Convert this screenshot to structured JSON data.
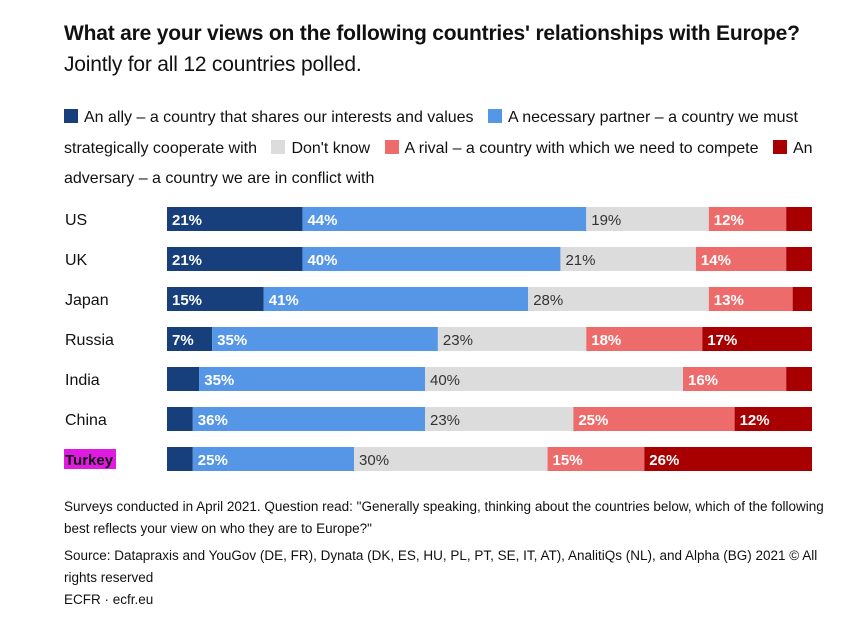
{
  "title": {
    "bold": "What are your views on the following countries' relationships with Europe?",
    "subtitle": "Jointly for all 12 countries polled."
  },
  "legend": [
    {
      "label": "An ally – a country that shares our interests and values",
      "color": "#163f7c"
    },
    {
      "label": "A necessary partner – a country we must strategically cooperate with",
      "color": "#5596e6"
    },
    {
      "label": "Don't know",
      "color": "#dcdcdc"
    },
    {
      "label": "A rival – a country with which we need to compete",
      "color": "#ee6b6b"
    },
    {
      "label": "An adversary – a country we are in conflict with",
      "color": "#a80000"
    }
  ],
  "chart_data": {
    "type": "bar",
    "orientation": "horizontal-stacked-100",
    "title": "What are your views on the following countries' relationships with Europe?",
    "categories": [
      "US",
      "UK",
      "Japan",
      "Russia",
      "India",
      "China",
      "Turkey"
    ],
    "highlight_category": "Turkey",
    "series": [
      {
        "name": "An ally – a country that shares our interests and values",
        "values": [
          21,
          21,
          15,
          7,
          5,
          4,
          4
        ],
        "labels": [
          "21%",
          "21%",
          "15%",
          "7%",
          "",
          "",
          ""
        ]
      },
      {
        "name": "A necessary partner – a country we must strategically cooperate with",
        "values": [
          44,
          40,
          41,
          35,
          35,
          36,
          25
        ],
        "labels": [
          "44%",
          "40%",
          "41%",
          "35%",
          "35%",
          "36%",
          "25%"
        ]
      },
      {
        "name": "Don't know",
        "values": [
          19,
          21,
          28,
          23,
          40,
          23,
          30
        ],
        "labels": [
          "19%",
          "21%",
          "28%",
          "23%",
          "40%",
          "23%",
          "30%"
        ]
      },
      {
        "name": "A rival – a country with which we need to compete",
        "values": [
          12,
          14,
          13,
          18,
          16,
          25,
          15
        ],
        "labels": [
          "12%",
          "14%",
          "13%",
          "18%",
          "16%",
          "25%",
          "15%"
        ]
      },
      {
        "name": "An adversary – a country we are in conflict with",
        "values": [
          4,
          4,
          3,
          17,
          4,
          12,
          26
        ],
        "labels": [
          "",
          "",
          "",
          "17%",
          "",
          "12%",
          "26%"
        ]
      }
    ],
    "xlim": [
      0,
      100
    ]
  },
  "footer": {
    "note": "Surveys conducted in April 2021. Question read: \"Generally speaking, thinking about the countries below, which of the following best reflects your view on who they are to Europe?\"",
    "source": "Source: Datapraxis and YouGov (DE, FR), Dynata (DK, ES, HU, PL, PT, SE, IT, AT), AnalitiQs (NL), and Alpha (BG) 2021 © All rights reserved",
    "credit": "ECFR · ecfr.eu"
  },
  "colors": {
    "label_dark_bg": "#ffffff",
    "label_light_bg": "#333333",
    "highlight_bg": "#e01ae0"
  }
}
